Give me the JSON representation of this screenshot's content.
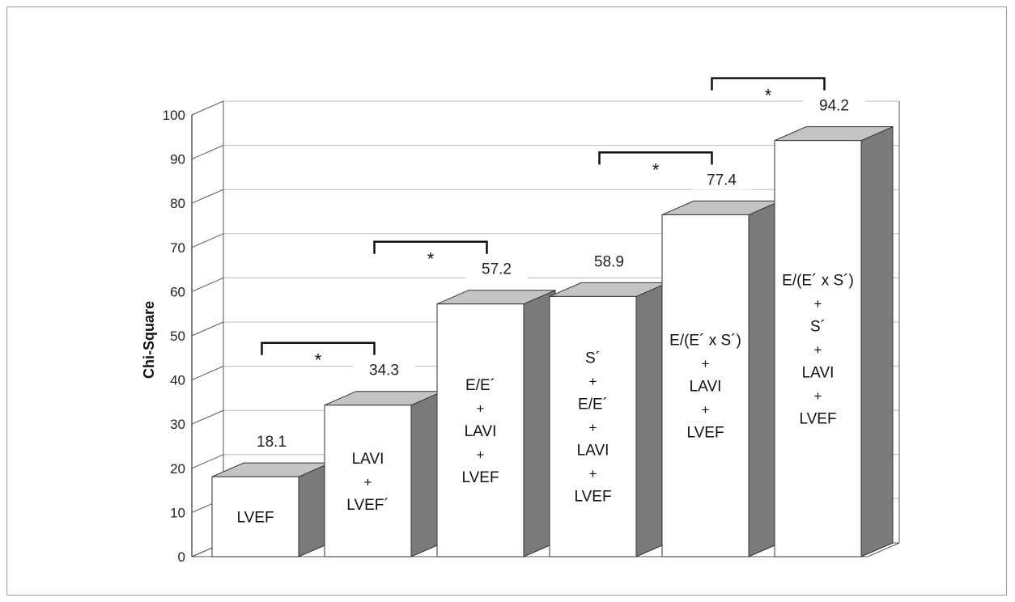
{
  "chart_data": {
    "type": "bar",
    "ylabel": "Chi-Square",
    "xlabel": "",
    "ylim": [
      0,
      100
    ],
    "yticks": [
      0,
      10,
      20,
      30,
      40,
      50,
      60,
      70,
      80,
      90,
      100
    ],
    "grid": true,
    "style": "3d",
    "categories": [
      [
        "LVEF"
      ],
      [
        "LAVI",
        "+",
        "LVEF´"
      ],
      [
        "E/E´",
        "+",
        "LAVI",
        "+",
        "LVEF"
      ],
      [
        "S´",
        "+",
        "E/E´",
        "+",
        "LAVI",
        "+",
        "LVEF"
      ],
      [
        "E/(E´ x S´)",
        "+",
        "LAVI",
        "+",
        "LVEF"
      ],
      [
        "E/(E´ x S´)",
        "+",
        "S´",
        "+",
        "LAVI",
        "+",
        "LVEF"
      ]
    ],
    "values": [
      18.1,
      34.3,
      57.2,
      58.9,
      77.4,
      94.2
    ],
    "value_labels": [
      "18.1",
      "34.3",
      "57.2",
      "58.9",
      "77.4",
      "94.2"
    ],
    "significance_brackets": [
      {
        "from": 0,
        "to": 1,
        "label": "*"
      },
      {
        "from": 1,
        "to": 2,
        "label": "*"
      },
      {
        "from": 3,
        "to": 4,
        "label": "*"
      },
      {
        "from": 4,
        "to": 5,
        "label": "*"
      }
    ],
    "colors": {
      "bar_front": "#ffffff",
      "bar_top": "#c4c4c4",
      "bar_side": "#7a7a7a",
      "grid": "#bdbdbd",
      "axis": "#555555",
      "bracket": "#111111"
    }
  }
}
